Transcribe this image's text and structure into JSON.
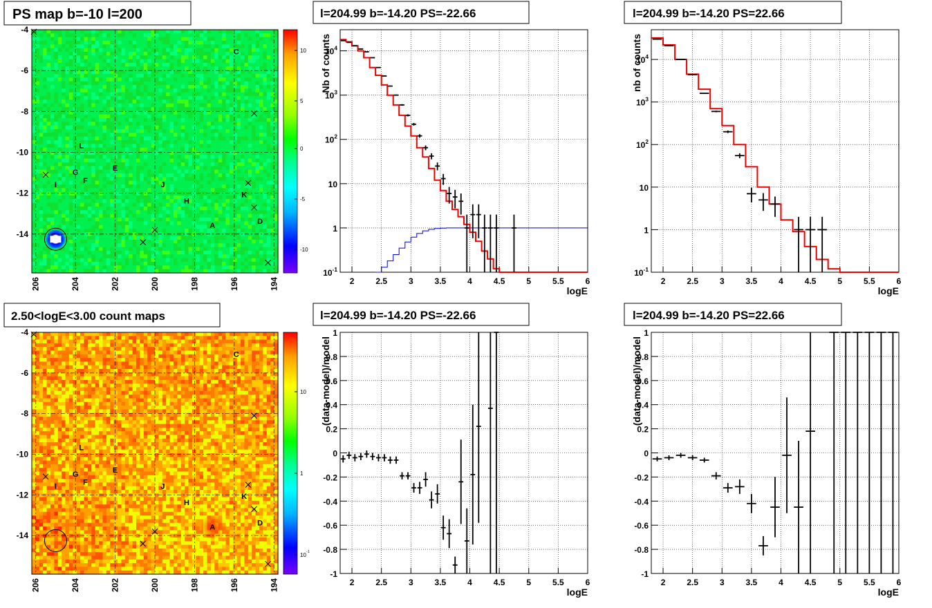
{
  "titles": {
    "psmap": "PS map b=-10 l=200",
    "countmap": "2.50<logE<3.00 count maps",
    "spec1": "l=204.99 b=-14.20 PS=-22.66",
    "spec2": "l=204.99 b=-14.20 PS=22.66",
    "res1": "l=204.99 b=-14.20 PS=-22.66",
    "res2": "l=204.99 b=-14.20 PS=22.66"
  },
  "chart_data": [
    {
      "type": "heatmap",
      "title": "PS map b=-10 l=200",
      "xlim": [
        206.2,
        193.8
      ],
      "ylim": [
        -15.9,
        -4
      ],
      "xticks": [
        "206",
        "204",
        "202",
        "200",
        "198",
        "196",
        "194"
      ],
      "yticks": [
        "-4",
        "-6",
        "-8",
        "-10",
        "-12",
        "-14"
      ],
      "colorbar_ticks": [
        "10",
        "5",
        "0",
        "-5",
        "-10"
      ],
      "colorscale": [
        "#7a00ff",
        "#0000ff",
        "#00b4ff",
        "#00ffff",
        "#00ff96",
        "#00ff00",
        "#96ff00",
        "#ffff00",
        "#ffa000",
        "#ff0000"
      ],
      "labels": [
        {
          "text": "C",
          "l": 195.9,
          "b": -5.2
        },
        {
          "text": "L",
          "l": 203.7,
          "b": -9.8
        },
        {
          "text": "G",
          "l": 204.0,
          "b": -11.1
        },
        {
          "text": "F",
          "l": 203.5,
          "b": -11.5
        },
        {
          "text": "E",
          "l": 202.0,
          "b": -10.9
        },
        {
          "text": "I",
          "l": 205.0,
          "b": -11.7
        },
        {
          "text": "J",
          "l": 199.6,
          "b": -11.7
        },
        {
          "text": "H",
          "l": 198.4,
          "b": -12.5
        },
        {
          "text": "K",
          "l": 195.5,
          "b": -12.2
        },
        {
          "text": "D",
          "l": 194.7,
          "b": -13.5
        },
        {
          "text": "A",
          "l": 197.1,
          "b": -13.7
        }
      ],
      "crosses": [
        [
          206.1,
          -4.1
        ],
        [
          195.0,
          -8.1
        ],
        [
          205.5,
          -11.1
        ],
        [
          195.3,
          -11.5
        ],
        [
          195.0,
          -12.7
        ],
        [
          200.0,
          -13.8
        ],
        [
          200.6,
          -14.4
        ],
        [
          194.3,
          -15.4
        ]
      ],
      "circle": {
        "l": 205.0,
        "b": -14.25
      }
    },
    {
      "type": "heatmap",
      "title": "2.50<logE<3.00 count maps",
      "xlim": [
        206.2,
        193.8
      ],
      "ylim": [
        -15.9,
        -4
      ],
      "xticks": [
        "206",
        "204",
        "202",
        "200",
        "198",
        "196",
        "194"
      ],
      "yticks": [
        "-4",
        "-6",
        "-8",
        "-10",
        "-12",
        "-14"
      ],
      "colorbar_ticks": [
        "10",
        "1",
        "10^-1"
      ],
      "colorscale": [
        "#7a00ff",
        "#0000ff",
        "#00b4ff",
        "#00ffff",
        "#00ff96",
        "#00ff00",
        "#96ff00",
        "#ffff00",
        "#ffa000",
        "#ff0000"
      ],
      "labels": [
        {
          "text": "C",
          "l": 195.9,
          "b": -5.2
        },
        {
          "text": "L",
          "l": 203.7,
          "b": -9.8
        },
        {
          "text": "G",
          "l": 204.0,
          "b": -11.1
        },
        {
          "text": "F",
          "l": 203.5,
          "b": -11.5
        },
        {
          "text": "E",
          "l": 202.0,
          "b": -10.9
        },
        {
          "text": "I",
          "l": 205.0,
          "b": -11.7
        },
        {
          "text": "J",
          "l": 199.6,
          "b": -11.7
        },
        {
          "text": "H",
          "l": 198.4,
          "b": -12.5
        },
        {
          "text": "K",
          "l": 195.5,
          "b": -12.2
        },
        {
          "text": "D",
          "l": 194.7,
          "b": -13.5
        },
        {
          "text": "A",
          "l": 197.1,
          "b": -13.7
        }
      ],
      "crosses": [
        [
          206.1,
          -4.1
        ],
        [
          195.0,
          -8.1
        ],
        [
          205.5,
          -11.1
        ],
        [
          195.3,
          -11.5
        ],
        [
          195.0,
          -12.7
        ],
        [
          200.0,
          -13.8
        ],
        [
          200.6,
          -14.4
        ],
        [
          194.3,
          -15.4
        ]
      ],
      "circle": {
        "l": 205.0,
        "b": -14.25
      }
    },
    {
      "type": "line",
      "title": "l=204.99 b=-14.20 PS=-22.66",
      "xlabel": "logE",
      "ylabel": "Nb of counts",
      "log_y": true,
      "xlim": [
        1.8,
        6
      ],
      "ylim": [
        0.1,
        30000
      ],
      "xticks": [
        "2",
        "2.5",
        "3",
        "3.5",
        "4",
        "4.5",
        "5",
        "5.5",
        "6"
      ],
      "yticks": [
        "10^-1",
        "1",
        "10",
        "10^2",
        "10^3",
        "10^4"
      ],
      "grid": true,
      "model_red": {
        "bin_width": 0.1,
        "x0": 1.8,
        "values": [
          18000,
          16000,
          13000,
          10000,
          7000,
          4200,
          2800,
          1700,
          1000,
          600,
          350,
          200,
          120,
          65,
          40,
          22,
          12,
          7,
          4,
          2.6,
          1.8,
          1.2,
          0.8,
          0.5,
          0.3,
          0.2,
          0.12,
          0.1,
          0.1,
          0.1,
          0.1,
          0.1,
          0.1,
          0.1,
          0.1,
          0.1,
          0.1,
          0.1,
          0.1,
          0.1,
          0.1,
          0.1
        ]
      },
      "model_blue": {
        "bin_width": 0.1,
        "x0": 2.4,
        "values": [
          0.1,
          0.13,
          0.18,
          0.25,
          0.35,
          0.48,
          0.62,
          0.75,
          0.86,
          0.93,
          0.97,
          0.99,
          1.0,
          1.0,
          1.0,
          1.0,
          1.0,
          1.0,
          1.0,
          1.0,
          1.0,
          1.0,
          1.0,
          1.0,
          1.0,
          1.0,
          1.0,
          1.0,
          1.0,
          1.0,
          1.0,
          1.0,
          1.0,
          1.0,
          1.0,
          1.0
        ]
      },
      "data": [
        {
          "x": 1.85,
          "y": 17000
        },
        {
          "x": 1.95,
          "y": 15500
        },
        {
          "x": 2.05,
          "y": 13000
        },
        {
          "x": 2.15,
          "y": 11000
        },
        {
          "x": 2.25,
          "y": 9500
        },
        {
          "x": 2.35,
          "y": 7000
        },
        {
          "x": 2.45,
          "y": 4200
        },
        {
          "x": 2.55,
          "y": 2700
        },
        {
          "x": 2.65,
          "y": 1600
        },
        {
          "x": 2.75,
          "y": 1000
        },
        {
          "x": 2.85,
          "y": 600
        },
        {
          "x": 2.95,
          "y": 350
        },
        {
          "x": 3.05,
          "y": 220
        },
        {
          "x": 3.15,
          "y": 120
        },
        {
          "x": 3.25,
          "y": 65
        },
        {
          "x": 3.35,
          "y": 42
        },
        {
          "x": 3.45,
          "y": 25
        },
        {
          "x": 3.55,
          "y": 13
        },
        {
          "x": 3.65,
          "y": 6
        },
        {
          "x": 3.75,
          "y": 5
        },
        {
          "x": 3.85,
          "y": 4
        },
        {
          "x": 3.95,
          "y": 1
        },
        {
          "x": 4.05,
          "y": 2
        },
        {
          "x": 4.15,
          "y": 2
        },
        {
          "x": 4.25,
          "y": 1
        },
        {
          "x": 4.35,
          "y": 1
        },
        {
          "x": 4.45,
          "y": 1
        },
        {
          "x": 4.75,
          "y": 1
        }
      ]
    },
    {
      "type": "line",
      "title": "l=204.99 b=-14.20 PS=22.66",
      "xlabel": "logE",
      "ylabel": "nb of counts",
      "log_y": true,
      "xlim": [
        1.8,
        6
      ],
      "ylim": [
        0.1,
        50000
      ],
      "xticks": [
        "2",
        "2.5",
        "3",
        "3.5",
        "4",
        "4.5",
        "5",
        "5.5",
        "6"
      ],
      "yticks": [
        "10^-1",
        "1",
        "10",
        "10^2",
        "10^3",
        "10^4"
      ],
      "grid": true,
      "model_red": {
        "bin_width": 0.2,
        "x0": 1.8,
        "values": [
          32000,
          22000,
          10000,
          4500,
          2000,
          700,
          280,
          100,
          30,
          10,
          4,
          1.7,
          0.9,
          0.4,
          0.2,
          0.12,
          0.1,
          0.1,
          0.1,
          0.1,
          0.1
        ]
      },
      "data": [
        {
          "x": 1.9,
          "y": 30000
        },
        {
          "x": 2.1,
          "y": 21000
        },
        {
          "x": 2.3,
          "y": 10000
        },
        {
          "x": 2.5,
          "y": 4400
        },
        {
          "x": 2.7,
          "y": 1600
        },
        {
          "x": 2.9,
          "y": 600
        },
        {
          "x": 3.1,
          "y": 200
        },
        {
          "x": 3.3,
          "y": 55
        },
        {
          "x": 3.5,
          "y": 7
        },
        {
          "x": 3.7,
          "y": 5
        },
        {
          "x": 3.9,
          "y": 4
        },
        {
          "x": 4.3,
          "y": 1
        },
        {
          "x": 4.5,
          "y": 1
        },
        {
          "x": 4.7,
          "y": 1
        }
      ]
    },
    {
      "type": "scatter",
      "title": "l=204.99 b=-14.20 PS=-22.66",
      "xlabel": "logE",
      "ylabel": "(data-model)/model",
      "xlim": [
        1.8,
        6
      ],
      "ylim": [
        -1,
        1
      ],
      "xticks": [
        "2",
        "2.5",
        "3",
        "3.5",
        "4",
        "4.5",
        "5",
        "5.5",
        "6"
      ],
      "yticks": [
        "-1",
        "-0.8",
        "-0.6",
        "-0.4",
        "-0.2",
        "0",
        "0.2",
        "0.4",
        "0.6",
        "0.8",
        "1"
      ],
      "grid": true,
      "points": [
        {
          "x": 1.85,
          "y": -0.05,
          "e": 0.03
        },
        {
          "x": 1.95,
          "y": -0.02,
          "e": 0.03
        },
        {
          "x": 2.05,
          "y": -0.04,
          "e": 0.03
        },
        {
          "x": 2.15,
          "y": -0.03,
          "e": 0.03
        },
        {
          "x": 2.25,
          "y": -0.01,
          "e": 0.03
        },
        {
          "x": 2.35,
          "y": -0.03,
          "e": 0.03
        },
        {
          "x": 2.45,
          "y": -0.04,
          "e": 0.03
        },
        {
          "x": 2.55,
          "y": -0.04,
          "e": 0.03
        },
        {
          "x": 2.65,
          "y": -0.06,
          "e": 0.03
        },
        {
          "x": 2.75,
          "y": -0.06,
          "e": 0.03
        },
        {
          "x": 2.85,
          "y": -0.19,
          "e": 0.03
        },
        {
          "x": 2.95,
          "y": -0.19,
          "e": 0.03
        },
        {
          "x": 3.05,
          "y": -0.29,
          "e": 0.04
        },
        {
          "x": 3.15,
          "y": -0.29,
          "e": 0.05
        },
        {
          "x": 3.25,
          "y": -0.22,
          "e": 0.06
        },
        {
          "x": 3.35,
          "y": -0.39,
          "e": 0.07
        },
        {
          "x": 3.45,
          "y": -0.34,
          "e": 0.08
        },
        {
          "x": 3.55,
          "y": -0.62,
          "e": 0.1
        },
        {
          "x": 3.65,
          "y": -0.67,
          "e": 0.12
        },
        {
          "x": 3.75,
          "y": -0.93,
          "e": 0.07
        },
        {
          "x": 3.85,
          "y": -0.24,
          "e": 0.35
        },
        {
          "x": 3.95,
          "y": -0.73,
          "e": 0.27
        },
        {
          "x": 4.05,
          "y": -0.18,
          "e": 0.58
        },
        {
          "x": 4.15,
          "y": 0.22,
          "e": 0.8
        },
        {
          "x": 4.35,
          "y": 0.37,
          "e": 1.4
        },
        {
          "x": 4.45,
          "y": 1.0,
          "e": 2.0
        }
      ]
    },
    {
      "type": "scatter",
      "title": "l=204.99 b=-14.20 PS=22.66",
      "xlabel": "logE",
      "ylabel": "(data-model)/model",
      "xlim": [
        1.8,
        6
      ],
      "ylim": [
        -1,
        1
      ],
      "xticks": [
        "2",
        "2.5",
        "3",
        "3.5",
        "4",
        "4.5",
        "5",
        "5.5",
        "6"
      ],
      "yticks": [
        "-1",
        "-0.8",
        "-0.6",
        "-0.4",
        "-0.2",
        "0",
        "0.2",
        "0.4",
        "0.6",
        "0.8",
        "1"
      ],
      "grid": true,
      "points": [
        {
          "x": 1.9,
          "y": -0.05,
          "e": 0.02
        },
        {
          "x": 2.1,
          "y": -0.04,
          "e": 0.02
        },
        {
          "x": 2.3,
          "y": -0.02,
          "e": 0.02
        },
        {
          "x": 2.5,
          "y": -0.04,
          "e": 0.02
        },
        {
          "x": 2.7,
          "y": -0.06,
          "e": 0.02
        },
        {
          "x": 2.9,
          "y": -0.19,
          "e": 0.03
        },
        {
          "x": 3.1,
          "y": -0.29,
          "e": 0.04
        },
        {
          "x": 3.3,
          "y": -0.28,
          "e": 0.06
        },
        {
          "x": 3.5,
          "y": -0.42,
          "e": 0.08
        },
        {
          "x": 3.7,
          "y": -0.77,
          "e": 0.08
        },
        {
          "x": 3.9,
          "y": -0.45,
          "e": 0.25
        },
        {
          "x": 4.1,
          "y": -0.02,
          "e": 0.48
        },
        {
          "x": 4.3,
          "y": -0.45,
          "e": 0.55
        },
        {
          "x": 4.5,
          "y": 0.18,
          "e": 1.2
        },
        {
          "x": 4.9,
          "y": 1.0,
          "e": 2.0
        },
        {
          "x": 5.1,
          "y": 1.0,
          "e": 2.0
        },
        {
          "x": 5.3,
          "y": 1.0,
          "e": 2.0
        },
        {
          "x": 5.5,
          "y": 1.0,
          "e": 2.0
        },
        {
          "x": 5.7,
          "y": 1.0,
          "e": 2.0
        },
        {
          "x": 5.9,
          "y": 1.0,
          "e": 2.0
        }
      ]
    }
  ]
}
